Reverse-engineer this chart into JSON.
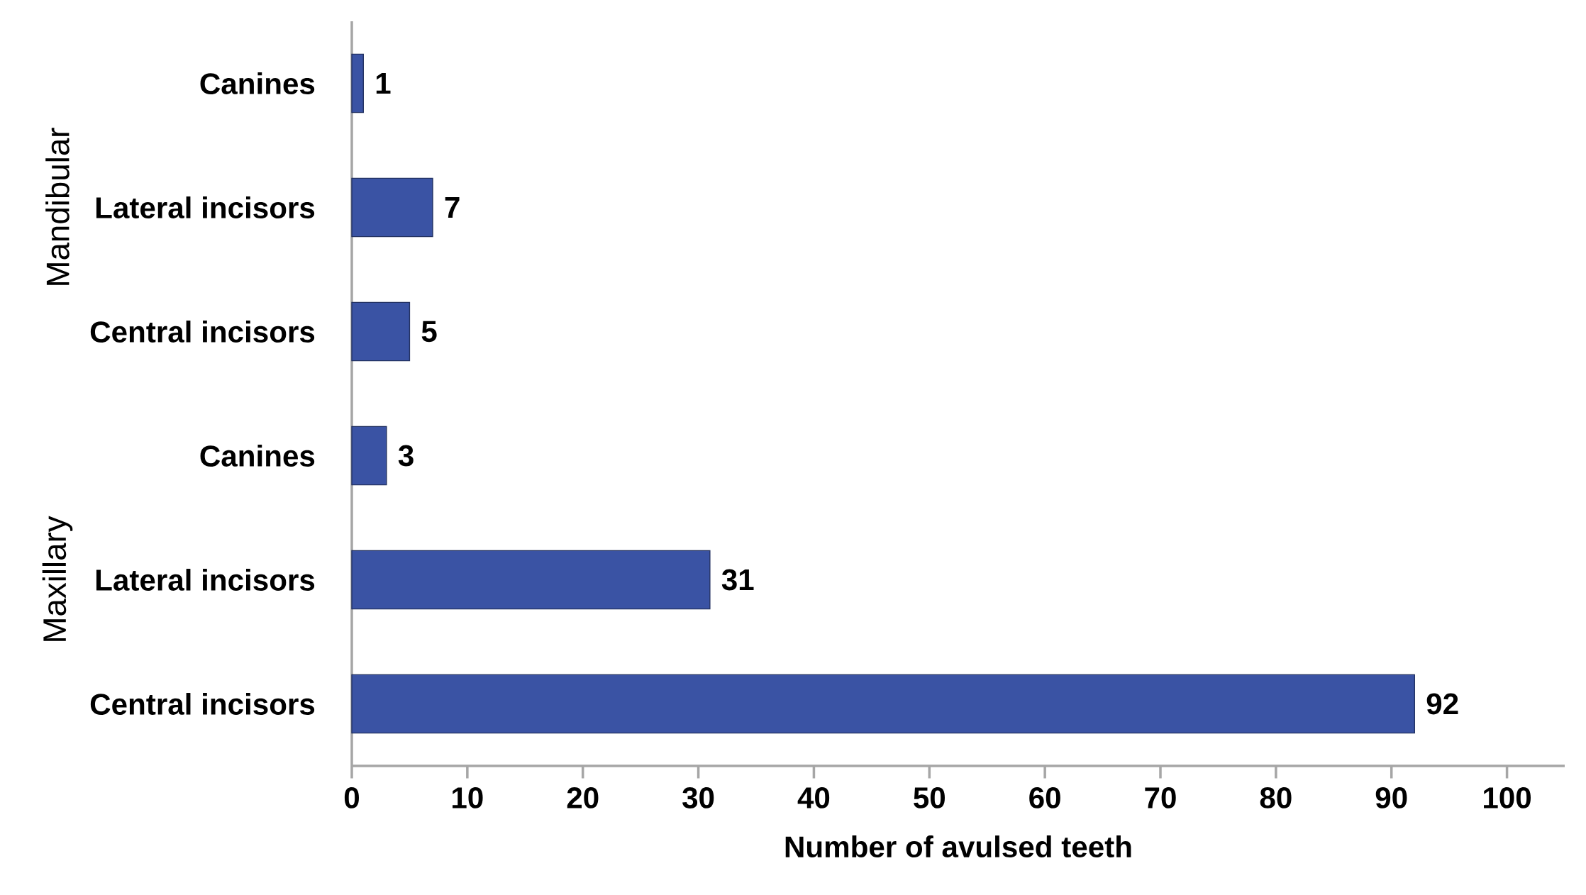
{
  "chart_data": {
    "type": "bar",
    "orientation": "horizontal",
    "categories": [
      "Canines",
      "Lateral incisors",
      "Central incisors",
      "Canines",
      "Lateral incisors",
      "Central incisors"
    ],
    "values": [
      1,
      7,
      5,
      3,
      31,
      92
    ],
    "color": "#3a53a4",
    "xlim": [
      0,
      105
    ],
    "xticks": [
      0,
      10,
      20,
      30,
      40,
      50,
      60,
      70,
      80,
      90,
      100
    ],
    "xlabel": "Number of avulsed teeth",
    "data_labels": true,
    "annotations": [
      "Mandibular",
      "Maxillary"
    ]
  }
}
